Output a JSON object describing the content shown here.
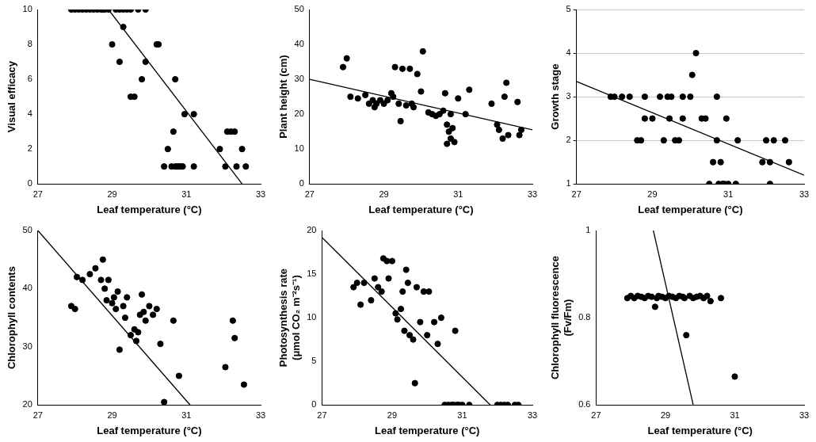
{
  "chart_data": [
    {
      "type": "scatter",
      "x_label": "Leaf temperature (°C)",
      "y_label": "Visual efficacy",
      "xlim": [
        27,
        33
      ],
      "xticks": [
        27,
        29,
        31,
        33
      ],
      "ylim": [
        0,
        10
      ],
      "yticks": [
        0,
        2,
        4,
        6,
        8,
        10
      ],
      "grid": false,
      "series": [
        {
          "type": "scatter",
          "marker": "circle",
          "color": "#000000",
          "x": [
            27.9,
            28.0,
            28.1,
            28.2,
            28.3,
            28.4,
            28.5,
            28.6,
            28.7,
            28.75,
            28.8,
            28.9,
            29.1,
            29.2,
            29.3,
            29.4,
            29.5,
            29.7,
            29.9,
            29.0,
            29.3,
            29.2,
            29.5,
            29.6,
            29.8,
            29.9,
            30.2,
            30.25,
            30.4,
            30.5,
            30.6,
            30.65,
            30.7,
            30.75,
            30.8,
            30.85,
            30.9,
            30.95,
            31.2,
            31.2,
            31.9,
            32.05,
            32.1,
            32.2,
            32.3,
            32.35,
            32.5,
            32.6,
            30.7
          ],
          "values": [
            10,
            10,
            10,
            10,
            10,
            10,
            10,
            10,
            10,
            10,
            10,
            10,
            10,
            10,
            10,
            10,
            10,
            10,
            10,
            8,
            9,
            7,
            5,
            5,
            6,
            7,
            8,
            8,
            1,
            2,
            1,
            3,
            6,
            1,
            1,
            1,
            1,
            4,
            4,
            1,
            2,
            1,
            3,
            3,
            3,
            1,
            2,
            1,
            1
          ]
        },
        {
          "type": "line",
          "line_style": "solid",
          "color": "#000000",
          "x": [
            28.9,
            32.5
          ],
          "values": [
            10,
            0
          ]
        }
      ]
    },
    {
      "type": "scatter",
      "x_label": "Leaf temperature (°C)",
      "y_label": "Plant height (cm)",
      "xlim": [
        27,
        33
      ],
      "xticks": [
        27,
        29,
        31,
        33
      ],
      "ylim": [
        0,
        50
      ],
      "yticks": [
        0,
        10,
        20,
        30,
        40,
        50
      ],
      "grid": false,
      "series": [
        {
          "type": "scatter",
          "marker": "circle",
          "color": "#000000",
          "x": [
            27.9,
            28.0,
            28.1,
            28.3,
            28.5,
            28.6,
            28.7,
            28.75,
            28.8,
            28.9,
            29.0,
            29.1,
            29.2,
            29.25,
            29.3,
            29.4,
            29.45,
            29.5,
            29.6,
            29.7,
            29.75,
            29.8,
            29.9,
            30.0,
            30.05,
            30.2,
            30.3,
            30.4,
            30.5,
            30.6,
            30.65,
            30.7,
            30.7,
            30.75,
            30.8,
            30.8,
            30.85,
            30.9,
            31.0,
            31.2,
            31.3,
            31.9,
            32.05,
            32.1,
            32.2,
            32.25,
            32.3,
            32.35,
            32.6,
            32.65,
            32.7
          ],
          "values": [
            33.5,
            36,
            25,
            24.5,
            25.5,
            23,
            24,
            22,
            23,
            24,
            23,
            24,
            26,
            25,
            33.5,
            23,
            18,
            33,
            22.5,
            33,
            23,
            22,
            31.5,
            26.5,
            38,
            20.5,
            20,
            19.5,
            20,
            21,
            26,
            17,
            11.5,
            15,
            13,
            20,
            16,
            12,
            24.5,
            20,
            27,
            23,
            17,
            15.5,
            13,
            25,
            29,
            14,
            23.5,
            14,
            15.5
          ]
        },
        {
          "type": "line",
          "line_style": "solid",
          "color": "#000000",
          "x": [
            27,
            33
          ],
          "values": [
            30,
            15.5
          ]
        }
      ]
    },
    {
      "type": "scatter",
      "x_label": "Leaf temperature (°C)",
      "y_label": "Growth stage",
      "xlim": [
        27,
        33
      ],
      "xticks": [
        27,
        29,
        31,
        33
      ],
      "ylim": [
        1,
        5
      ],
      "yticks": [
        1,
        2,
        3,
        4,
        5
      ],
      "grid": true,
      "series": [
        {
          "type": "scatter",
          "marker": "circle",
          "color": "#000000",
          "x": [
            27.9,
            28.0,
            28.2,
            28.4,
            28.6,
            28.7,
            28.8,
            28.8,
            29.0,
            29.2,
            29.3,
            29.4,
            29.45,
            29.5,
            29.6,
            29.7,
            29.8,
            29.8,
            30.0,
            30.05,
            30.15,
            30.3,
            30.4,
            30.5,
            30.6,
            30.7,
            30.7,
            30.75,
            30.8,
            30.85,
            30.9,
            30.95,
            31.0,
            31.2,
            31.25,
            31.9,
            32.0,
            32.1,
            32.1,
            32.2,
            32.5,
            32.6
          ],
          "values": [
            3,
            3,
            3,
            3,
            2,
            2,
            3,
            2.5,
            2.5,
            3,
            2,
            3,
            2.5,
            3,
            2,
            2,
            3,
            2.5,
            3,
            3.5,
            4,
            2.5,
            2.5,
            1,
            1.5,
            2,
            3,
            1,
            1.5,
            1,
            1,
            2.5,
            1,
            1,
            2,
            1.5,
            2,
            1.5,
            1,
            2,
            2,
            1.5
          ]
        },
        {
          "type": "line",
          "line_style": "solid",
          "color": "#000000",
          "x": [
            27,
            33
          ],
          "values": [
            3.35,
            1.2
          ]
        }
      ]
    },
    {
      "type": "scatter",
      "x_label": "Leaf temperature (°C)",
      "y_label": "Chlorophyll contents",
      "xlim": [
        27,
        33
      ],
      "xticks": [
        27,
        29,
        31,
        33
      ],
      "ylim": [
        20,
        50
      ],
      "yticks": [
        20,
        30,
        40,
        50
      ],
      "grid": false,
      "series": [
        {
          "type": "scatter",
          "marker": "circle",
          "color": "#000000",
          "x": [
            27.9,
            28.0,
            28.05,
            28.2,
            28.4,
            28.55,
            28.7,
            28.75,
            28.8,
            28.85,
            28.9,
            29.0,
            29.05,
            29.1,
            29.15,
            29.2,
            29.3,
            29.35,
            29.4,
            29.5,
            29.6,
            29.65,
            29.7,
            29.75,
            29.8,
            29.85,
            29.9,
            30.0,
            30.1,
            30.2,
            30.3,
            30.4,
            30.65,
            30.8,
            32.05,
            32.25,
            32.3,
            32.55
          ],
          "values": [
            37,
            36.5,
            42,
            41.5,
            42.5,
            43.5,
            41.5,
            45,
            40,
            38,
            41.5,
            37.5,
            38.5,
            36.5,
            39.5,
            29.5,
            37,
            35,
            38.5,
            32,
            33,
            31,
            32.5,
            35.5,
            39,
            36,
            34.5,
            37,
            35.5,
            36.5,
            30.5,
            20.5,
            34.5,
            25,
            26.5,
            34.5,
            31.5,
            23.5
          ]
        },
        {
          "type": "line",
          "line_style": "solid",
          "color": "#000000",
          "x": [
            27,
            31.1
          ],
          "values": [
            50,
            20
          ]
        }
      ]
    },
    {
      "type": "scatter",
      "x_label": "Leaf temperature (°C)",
      "y_label": [
        "Photosynthesis rate",
        "(μmol CO₂ m⁻²s⁻¹)"
      ],
      "xlim": [
        27,
        33
      ],
      "xticks": [
        27,
        29,
        31,
        33
      ],
      "ylim": [
        0,
        20
      ],
      "yticks": [
        0,
        5,
        10,
        15,
        20
      ],
      "grid": false,
      "series": [
        {
          "type": "scatter",
          "marker": "circle",
          "color": "#000000",
          "x": [
            27.9,
            28.0,
            28.1,
            28.2,
            28.4,
            28.5,
            28.6,
            28.7,
            28.75,
            28.85,
            28.9,
            29.0,
            29.1,
            29.15,
            29.25,
            29.3,
            29.35,
            29.4,
            29.45,
            29.5,
            29.6,
            29.65,
            29.7,
            29.8,
            29.9,
            30.0,
            30.05,
            30.2,
            30.3,
            30.4,
            30.5,
            30.6,
            30.7,
            30.75,
            30.8,
            30.85,
            30.9,
            31.0,
            31.2,
            32.0,
            32.1,
            32.2,
            32.3,
            32.5,
            32.6
          ],
          "values": [
            13.5,
            14,
            11.5,
            14,
            12,
            14.5,
            13.5,
            13,
            16.8,
            16.5,
            14.5,
            16.5,
            10.5,
            9.8,
            11,
            13,
            8.5,
            15.5,
            14,
            8,
            7.5,
            2.5,
            13.5,
            9.5,
            13,
            8,
            13,
            9.5,
            7,
            10,
            0,
            0,
            0,
            0,
            8.5,
            0,
            0,
            0,
            0,
            0,
            0,
            0,
            0,
            0,
            0
          ]
        },
        {
          "type": "line",
          "line_style": "solid",
          "color": "#000000",
          "x": [
            27,
            31.8
          ],
          "values": [
            19.2,
            0
          ]
        }
      ]
    },
    {
      "type": "scatter",
      "x_label": "Leaf temperature (°C)",
      "y_label": [
        "Chlorophyll fluorescence",
        "(Fv/Fm)"
      ],
      "xlim": [
        27,
        33
      ],
      "xticks": [
        27,
        29,
        31,
        33
      ],
      "ylim": [
        0.6,
        1
      ],
      "yticks": [
        0.6,
        0.8,
        1
      ],
      "grid": false,
      "series": [
        {
          "type": "scatter",
          "marker": "circle",
          "color": "#000000",
          "x": [
            27.9,
            28.0,
            28.1,
            28.2,
            28.3,
            28.4,
            28.5,
            28.6,
            28.7,
            28.75,
            28.8,
            28.9,
            29.0,
            29.1,
            29.2,
            29.3,
            29.4,
            29.5,
            29.55,
            29.6,
            29.7,
            29.8,
            29.9,
            30.0,
            30.1,
            30.2,
            30.3,
            30.6,
            31.0
          ],
          "values": [
            0.845,
            0.85,
            0.845,
            0.85,
            0.848,
            0.845,
            0.85,
            0.848,
            0.825,
            0.845,
            0.85,
            0.848,
            0.845,
            0.85,
            0.848,
            0.845,
            0.85,
            0.848,
            0.845,
            0.76,
            0.85,
            0.845,
            0.848,
            0.85,
            0.845,
            0.85,
            0.838,
            0.845,
            0.665
          ]
        },
        {
          "type": "line",
          "line_style": "solid",
          "color": "#000000",
          "x": [
            28.65,
            29.8
          ],
          "values": [
            1,
            0.6
          ]
        }
      ]
    }
  ]
}
